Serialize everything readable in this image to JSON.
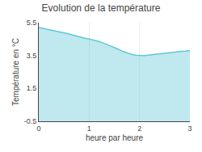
{
  "chart_data": {
    "type": "area",
    "title": "Evolution de la température",
    "xlabel": "heure par heure",
    "ylabel": "Température en °C",
    "x": [
      0,
      0.083,
      0.167,
      0.25,
      0.333,
      0.417,
      0.5,
      0.583,
      0.667,
      0.75,
      0.833,
      0.917,
      1.0,
      1.083,
      1.167,
      1.25,
      1.333,
      1.417,
      1.5,
      1.583,
      1.667,
      1.75,
      1.833,
      1.917,
      2.0,
      2.083,
      2.167,
      2.25,
      2.333,
      2.417,
      2.5,
      2.583,
      2.667,
      2.75,
      2.833,
      2.917,
      3.0
    ],
    "values": [
      5.2,
      5.15,
      5.1,
      5.05,
      5.0,
      4.95,
      4.9,
      4.82,
      4.75,
      4.68,
      4.6,
      4.55,
      4.5,
      4.45,
      4.38,
      4.3,
      4.2,
      4.1,
      4.0,
      3.88,
      3.75,
      3.65,
      3.58,
      3.52,
      3.5,
      3.5,
      3.52,
      3.55,
      3.6,
      3.62,
      3.65,
      3.68,
      3.7,
      3.72,
      3.75,
      3.77,
      3.8
    ],
    "color": "#60c8d8",
    "xlim": [
      0,
      3
    ],
    "ylim": [
      -0.5,
      5.5
    ],
    "xticks": [
      0,
      1,
      2,
      3
    ],
    "yticks": [
      -0.5,
      1.5,
      3.5,
      5.5
    ],
    "grid": "x"
  }
}
